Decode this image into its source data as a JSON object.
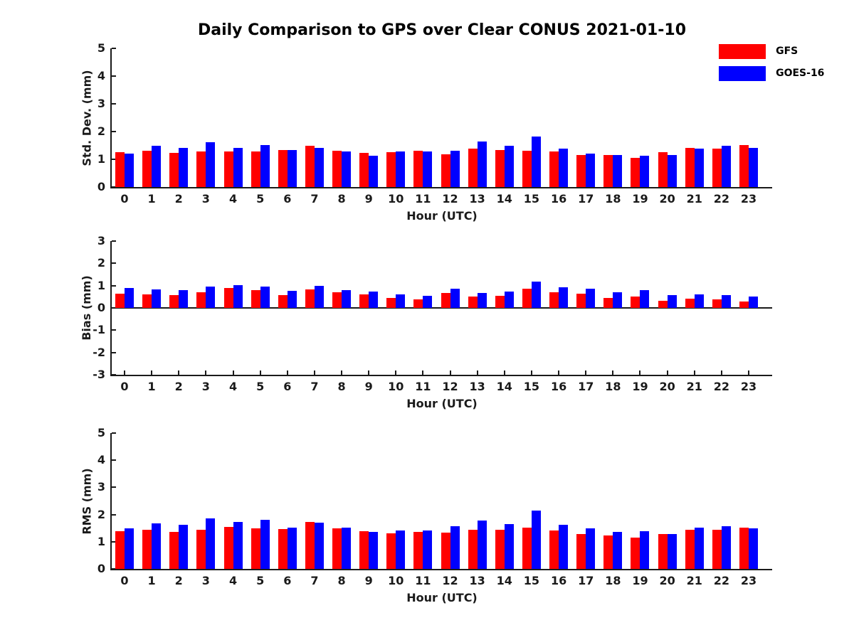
{
  "title": "Daily Comparison to GPS over Clear CONUS 2021-01-10",
  "legend": {
    "items": [
      {
        "label": "GFS",
        "color": "#ff0000"
      },
      {
        "label": "GOES-16",
        "color": "#0000ff"
      }
    ]
  },
  "colors": {
    "gfs": "#ff0000",
    "goes16": "#0000ff",
    "axis": "#1a1a1a",
    "background": "#ffffff"
  },
  "chart_data": {
    "type": "bar",
    "title": "Daily Comparison to GPS over Clear CONUS 2021-01-10",
    "categories": [
      "0",
      "1",
      "2",
      "3",
      "4",
      "5",
      "6",
      "7",
      "8",
      "9",
      "10",
      "11",
      "12",
      "13",
      "14",
      "15",
      "16",
      "17",
      "18",
      "19",
      "20",
      "21",
      "22",
      "23"
    ],
    "xlabel": "Hour (UTC)",
    "legend_position": "top-right",
    "grid": false,
    "panels": [
      {
        "ylabel": "Std. Dev. (mm)",
        "ylim": [
          0,
          5
        ],
        "yticks": [
          0,
          1,
          2,
          3,
          4,
          5
        ],
        "series": [
          {
            "name": "GFS",
            "color": "#ff0000",
            "values": [
              1.25,
              1.32,
              1.22,
              1.28,
              1.28,
              1.27,
              1.33,
              1.5,
              1.32,
              1.24,
              1.25,
              1.3,
              1.18,
              1.38,
              1.33,
              1.3,
              1.28,
              1.16,
              1.15,
              1.04,
              1.25,
              1.4,
              1.38,
              1.52
            ]
          },
          {
            "name": "GOES-16",
            "color": "#0000ff",
            "values": [
              1.21,
              1.48,
              1.41,
              1.62,
              1.41,
              1.51,
              1.33,
              1.41,
              1.27,
              1.13,
              1.28,
              1.27,
              1.31,
              1.65,
              1.5,
              1.82,
              1.38,
              1.21,
              1.15,
              1.12,
              1.15,
              1.38,
              1.48,
              1.41
            ]
          }
        ]
      },
      {
        "ylabel": "Bias (mm)",
        "ylim": [
          -3,
          3
        ],
        "yticks": [
          -3,
          -2,
          -1,
          0,
          1,
          2,
          3
        ],
        "series": [
          {
            "name": "GFS",
            "color": "#ff0000",
            "values": [
              0.64,
              0.61,
              0.56,
              0.71,
              0.89,
              0.79,
              0.58,
              0.84,
              0.7,
              0.6,
              0.44,
              0.38,
              0.68,
              0.51,
              0.55,
              0.86,
              0.69,
              0.65,
              0.46,
              0.5,
              0.33,
              0.4,
              0.38,
              0.3
            ]
          },
          {
            "name": "GOES-16",
            "color": "#0000ff",
            "values": [
              0.88,
              0.84,
              0.8,
              0.97,
              1.03,
              0.97,
              0.76,
              0.98,
              0.8,
              0.74,
              0.62,
              0.55,
              0.85,
              0.68,
              0.72,
              1.18,
              0.93,
              0.86,
              0.71,
              0.8,
              0.56,
              0.6,
              0.56,
              0.5
            ]
          }
        ]
      },
      {
        "ylabel": "RMS (mm)",
        "ylim": [
          0,
          5
        ],
        "yticks": [
          0,
          1,
          2,
          3,
          4,
          5
        ],
        "series": [
          {
            "name": "GFS",
            "color": "#ff0000",
            "values": [
              1.4,
              1.43,
              1.36,
              1.43,
              1.55,
              1.48,
              1.46,
              1.72,
              1.49,
              1.39,
              1.3,
              1.36,
              1.34,
              1.45,
              1.43,
              1.53,
              1.42,
              1.29,
              1.22,
              1.15,
              1.29,
              1.45,
              1.43,
              1.53
            ]
          },
          {
            "name": "GOES-16",
            "color": "#0000ff",
            "values": [
              1.48,
              1.68,
              1.63,
              1.87,
              1.74,
              1.8,
              1.53,
              1.69,
              1.51,
              1.36,
              1.41,
              1.41,
              1.56,
              1.77,
              1.66,
              2.15,
              1.63,
              1.48,
              1.36,
              1.38,
              1.27,
              1.51,
              1.57,
              1.48
            ]
          }
        ]
      }
    ]
  }
}
